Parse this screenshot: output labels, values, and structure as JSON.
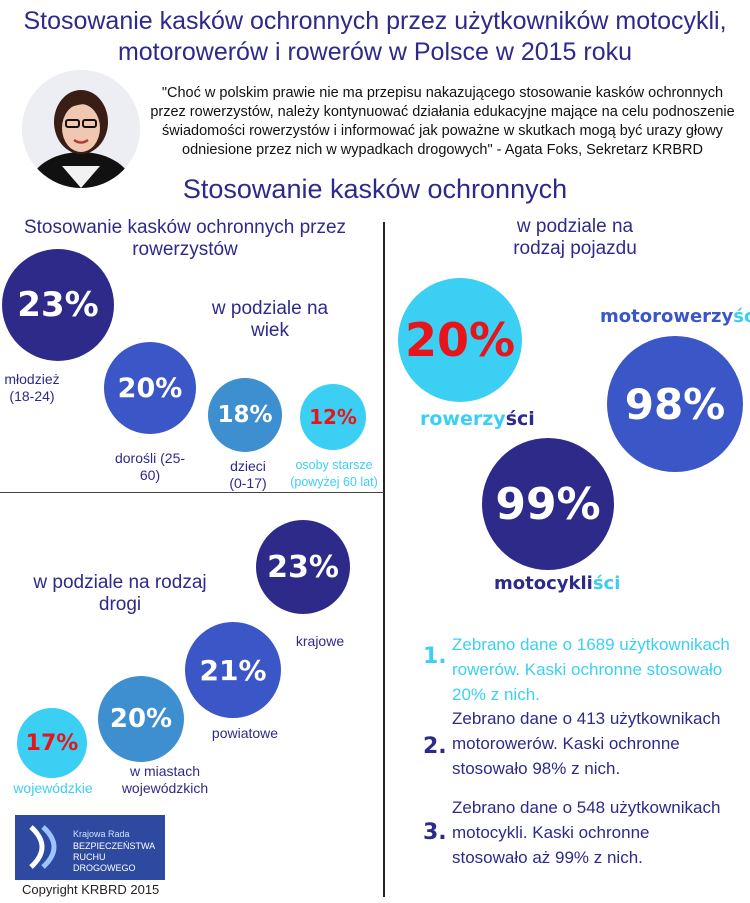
{
  "title": "Stosowanie kasków ochronnych przez użytkowników motocykli, motorowerów i rowerów w Polsce w 2015 roku",
  "quote": "\"Choć w polskim prawie nie ma przepisu nakazującego stosowanie kasków ochronnych przez rowerzystów, należy kontynuować działania edukacyjne mające na celu podnoszenie świadomości rowerzystów i informować jak poważne w skutkach mogą być urazy głowy odniesione przez nich w wypadkach drogowych\" - Agata Foks, Sekretarz KRBRD",
  "subtitle": "Stosowanie kasków ochronnych",
  "cyclists": {
    "heading": "Stosowanie kasków ochronnych przez rowerzystów",
    "age_heading": "w podziale na wiek",
    "items": [
      {
        "value": "23%",
        "label": "młodzież (18-24)"
      },
      {
        "value": "20%",
        "label": "dorośli (25-60)"
      },
      {
        "value": "18%",
        "label": "dzieci (0-17)"
      },
      {
        "value": "12%",
        "label": "osoby starsze (powyżej 60 lat)"
      }
    ]
  },
  "vehicle": {
    "heading": "w podziale na rodzaj pojazdu",
    "items": [
      {
        "value": "20%",
        "label_a": "rowerzy",
        "label_b": "ści"
      },
      {
        "value": "98%",
        "label_a": "motorowerzy",
        "label_b": "ści"
      },
      {
        "value": "99%",
        "label_a": "motocykli",
        "label_b": "ści"
      }
    ]
  },
  "road": {
    "heading": "w podziale na rodzaj drogi",
    "items": [
      {
        "value": "23%",
        "label": "krajowe"
      },
      {
        "value": "21%",
        "label": "powiatowe"
      },
      {
        "value": "20%",
        "label": "w miastach wojewódzkich"
      },
      {
        "value": "17%",
        "label": "wojewódzkie"
      }
    ]
  },
  "notes": [
    {
      "num": "1.",
      "text": "Zebrano dane o 1689 użytkownikach rowerów. Kaski ochronne stosowało 20% z nich."
    },
    {
      "num": "2.",
      "text": "Zebrano dane o 413 użytkownikach motorowerów. Kaski ochronne stosowało 98% z nich."
    },
    {
      "num": "3.",
      "text": "Zebrano dane o 548 użytkownikach motocykli. Kaski ochronne stosowało aż 99% z nich."
    }
  ],
  "logo": {
    "line1": "Krajowa Rada",
    "line2": "BEZPIECZEŃSTWA",
    "line3": "RUCHU DROGOWEGO"
  },
  "copyright": "Copyright KRBRD 2015",
  "colors": {
    "navy": "#2d2a8a",
    "blue": "#3b56c6",
    "mid": "#3d8fd0",
    "cyan": "#3bd0f3",
    "red": "#e8141c"
  }
}
